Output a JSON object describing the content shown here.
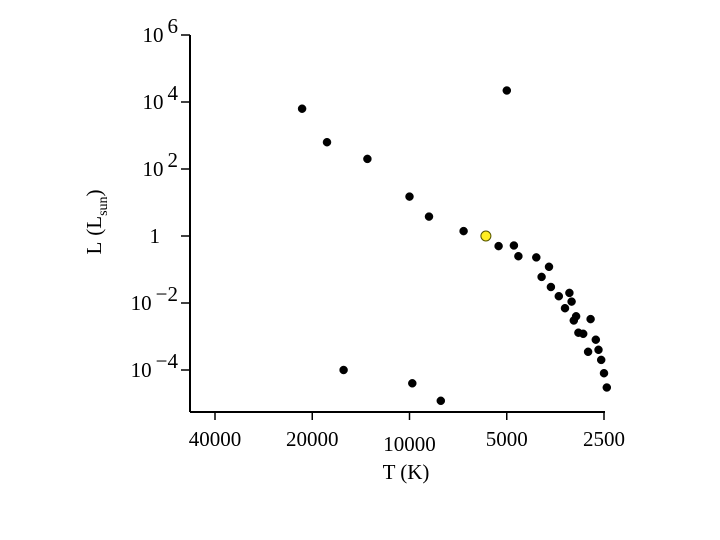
{
  "chart_data": {
    "type": "scatter",
    "title": "",
    "xlabel": "T (K)",
    "ylabel_main": "L",
    "ylabel_sub": "sun",
    "x_scale": "log",
    "y_scale": "log",
    "x_reversed": true,
    "xlim": [
      50000,
      2300
    ],
    "ylim": [
      5e-06,
      1000000
    ],
    "grid": false,
    "legend": "none",
    "x_ticks": [
      {
        "value": 40000,
        "label": "40000"
      },
      {
        "value": 20000,
        "label": "20000"
      },
      {
        "value": 10000,
        "label": "10000"
      },
      {
        "value": 5000,
        "label": "5000"
      },
      {
        "value": 2500,
        "label": "2500"
      }
    ],
    "y_ticks": [
      {
        "value": 1000000,
        "base": "10",
        "exp": "6"
      },
      {
        "value": 10000,
        "base": "10",
        "exp": "4"
      },
      {
        "value": 100,
        "base": "10",
        "exp": "2"
      },
      {
        "value": 1,
        "base": "1",
        "exp": ""
      },
      {
        "value": 0.01,
        "base": "10",
        "exp": "−2"
      },
      {
        "value": 0.0001,
        "base": "10",
        "exp": "−4"
      }
    ],
    "colors": {
      "point": "#000000",
      "highlight": "#ffee22",
      "highlight_stroke": "#555500"
    },
    "points": [
      {
        "T": 21500,
        "L": 6300
      },
      {
        "T": 18000,
        "L": 630
      },
      {
        "T": 13500,
        "L": 200
      },
      {
        "T": 10000,
        "L": 15
      },
      {
        "T": 8700,
        "L": 3.8
      },
      {
        "T": 6800,
        "L": 1.4
      },
      {
        "T": 5800,
        "L": 1.0,
        "highlight": true
      },
      {
        "T": 5300,
        "L": 0.5
      },
      {
        "T": 4750,
        "L": 0.52
      },
      {
        "T": 4600,
        "L": 0.25
      },
      {
        "T": 4050,
        "L": 0.23
      },
      {
        "T": 3900,
        "L": 0.06
      },
      {
        "T": 3700,
        "L": 0.12
      },
      {
        "T": 3650,
        "L": 0.03
      },
      {
        "T": 3450,
        "L": 0.016
      },
      {
        "T": 3300,
        "L": 0.007
      },
      {
        "T": 3200,
        "L": 0.02
      },
      {
        "T": 3150,
        "L": 0.011
      },
      {
        "T": 3100,
        "L": 0.003
      },
      {
        "T": 3050,
        "L": 0.004
      },
      {
        "T": 3000,
        "L": 0.0013
      },
      {
        "T": 2900,
        "L": 0.0012
      },
      {
        "T": 2800,
        "L": 0.00035
      },
      {
        "T": 2750,
        "L": 0.0033
      },
      {
        "T": 2650,
        "L": 0.0008
      },
      {
        "T": 2600,
        "L": 0.0004
      },
      {
        "T": 2550,
        "L": 0.0002
      },
      {
        "T": 2500,
        "L": 8e-05
      },
      {
        "T": 2450,
        "L": 3e-05
      },
      {
        "T": 5000,
        "L": 22000
      },
      {
        "T": 16000,
        "L": 0.0001
      },
      {
        "T": 9800,
        "L": 4e-05
      },
      {
        "T": 8000,
        "L": 1.2e-05
      }
    ]
  }
}
